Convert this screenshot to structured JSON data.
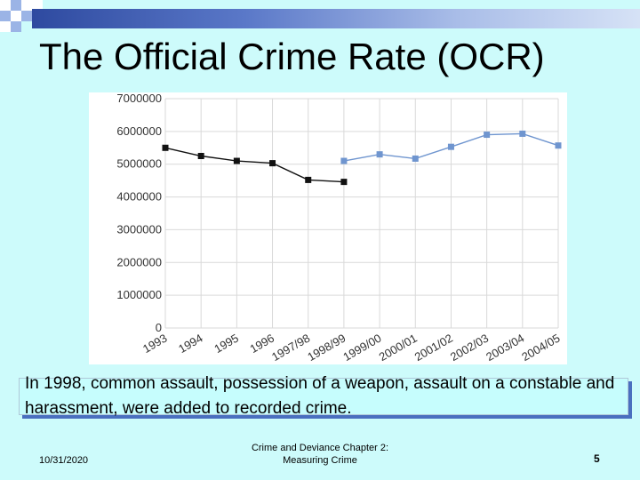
{
  "slide": {
    "title": "The Official Crime Rate (OCR)",
    "note": "In 1998, common assault, possession of a weapon, assault on a constable and harassment, were added to recorded crime.",
    "footer_date": "10/31/2020",
    "footer_center": "Crime and Deviance Chapter 2: Measuring Crime",
    "page_number": "5"
  },
  "colors": {
    "series_old": "#111111",
    "series_new": "#6f95cf",
    "grid": "#d9d9d9",
    "background": "#cdfbfb"
  },
  "chart_data": {
    "type": "line",
    "title": "",
    "xlabel": "",
    "ylabel": "",
    "categories": [
      "1993",
      "1994",
      "1995",
      "1996",
      "1997/98",
      "1998/99",
      "1999/00",
      "2000/01",
      "2001/02",
      "2002/03",
      "2003/04",
      "2004/05"
    ],
    "y_ticks": [
      "0",
      "1000000",
      "2000000",
      "3000000",
      "4000000",
      "5000000",
      "6000000",
      "7000000"
    ],
    "ylim": [
      0,
      7000000
    ],
    "grid": true,
    "legend": "none",
    "series": [
      {
        "values": [
          5500000,
          5250000,
          5100000,
          5030000,
          4520000,
          4460000,
          null,
          null,
          null,
          null,
          null,
          null
        ]
      },
      {
        "values": [
          null,
          null,
          null,
          null,
          null,
          5100000,
          5300000,
          5170000,
          5530000,
          5900000,
          5930000,
          5570000
        ]
      }
    ]
  }
}
